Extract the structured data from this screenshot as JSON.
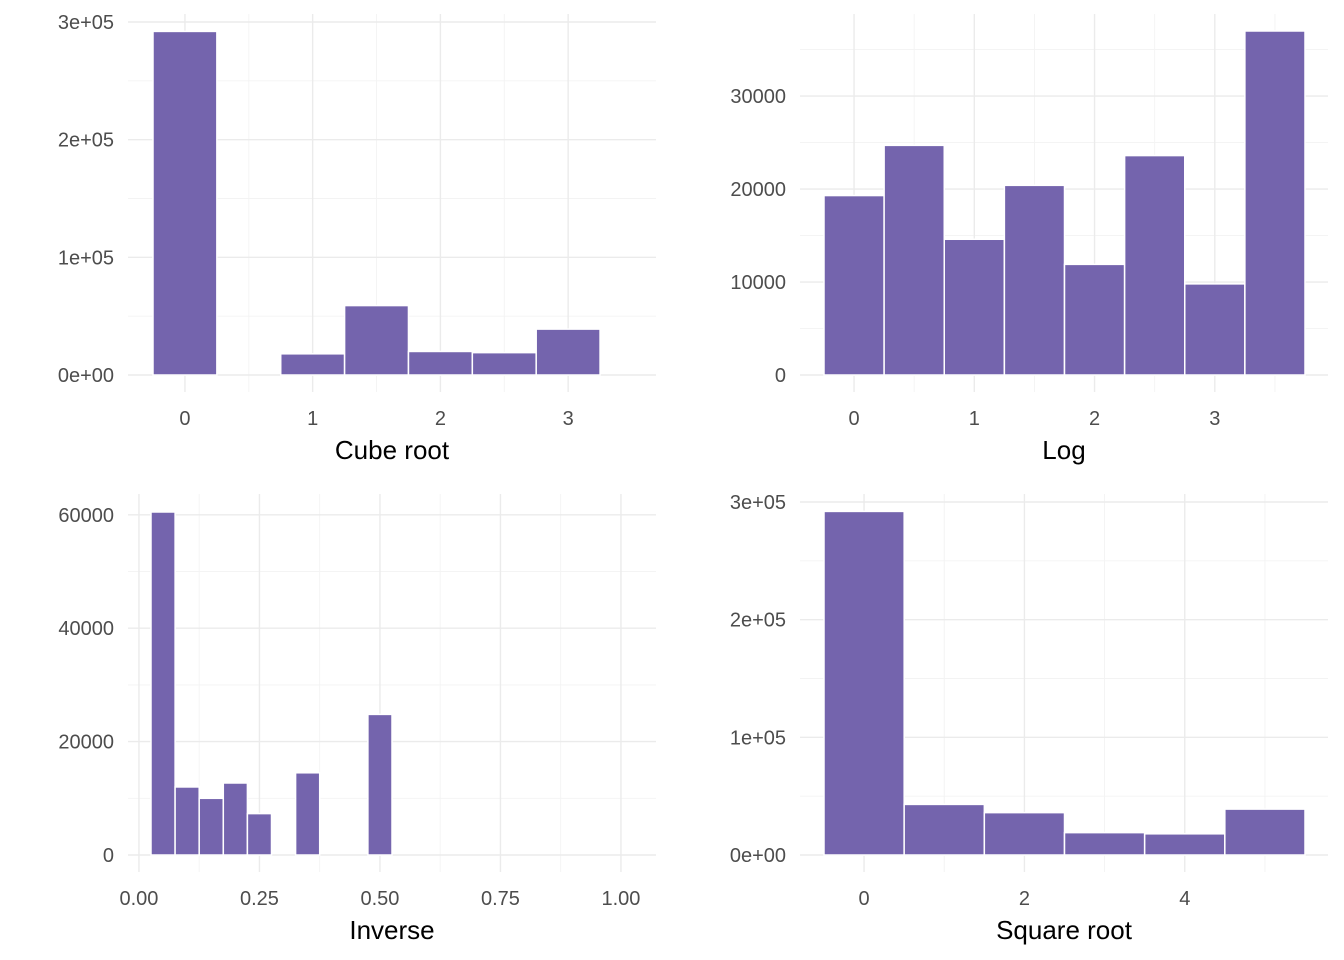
{
  "colors": {
    "bar_fill": "#7464ad",
    "bar_outline": "#ffffff",
    "grid_major": "#ebebeb",
    "grid_minor": "#f3f3f3"
  },
  "chart_data": [
    {
      "type": "bar",
      "title": "",
      "xlabel": "Cube root",
      "ylabel": "",
      "xlim": [
        -0.25,
        3.5
      ],
      "ylim": [
        0,
        300000
      ],
      "x_major_ticks": [
        0,
        1,
        2,
        3
      ],
      "x_tick_labels": [
        "0",
        "1",
        "2",
        "3"
      ],
      "x_minor_ticks": [
        0.5,
        1.5,
        2.5
      ],
      "y_major_ticks": [
        0,
        100000,
        200000,
        300000
      ],
      "y_tick_labels": [
        "0e+00",
        "1e+05",
        "2e+05",
        "3e+05"
      ],
      "y_minor_ticks": [
        50000,
        150000,
        250000
      ],
      "bins": [
        {
          "x0": -0.25,
          "x1": 0.25,
          "count": 292000
        },
        {
          "x0": 0.25,
          "x1": 0.75,
          "count": 0
        },
        {
          "x0": 0.75,
          "x1": 1.25,
          "count": 18000
        },
        {
          "x0": 1.25,
          "x1": 1.75,
          "count": 59000
        },
        {
          "x0": 1.75,
          "x1": 2.25,
          "count": 20000
        },
        {
          "x0": 2.25,
          "x1": 2.75,
          "count": 19000
        },
        {
          "x0": 2.75,
          "x1": 3.25,
          "count": 39000
        }
      ]
    },
    {
      "type": "bar",
      "title": "",
      "xlabel": "Log",
      "ylabel": "",
      "xlim": [
        -0.25,
        3.75
      ],
      "ylim": [
        0,
        37000
      ],
      "x_major_ticks": [
        0,
        1,
        2,
        3
      ],
      "x_tick_labels": [
        "0",
        "1",
        "2",
        "3"
      ],
      "x_minor_ticks": [
        0.5,
        1.5,
        2.5,
        3.5
      ],
      "y_major_ticks": [
        0,
        10000,
        20000,
        30000
      ],
      "y_tick_labels": [
        "0",
        "10000",
        "20000",
        "30000"
      ],
      "y_minor_ticks": [
        5000,
        15000,
        25000,
        35000
      ],
      "bins": [
        {
          "x0": -0.25,
          "x1": 0.25,
          "count": 19300
        },
        {
          "x0": 0.25,
          "x1": 0.75,
          "count": 24700
        },
        {
          "x0": 0.75,
          "x1": 1.25,
          "count": 14600
        },
        {
          "x0": 1.25,
          "x1": 1.75,
          "count": 20400
        },
        {
          "x0": 1.75,
          "x1": 2.25,
          "count": 11900
        },
        {
          "x0": 2.25,
          "x1": 2.75,
          "count": 23600
        },
        {
          "x0": 2.75,
          "x1": 3.25,
          "count": 9800
        },
        {
          "x0": 3.25,
          "x1": 3.75,
          "count": 37000
        }
      ]
    },
    {
      "type": "bar",
      "title": "",
      "xlabel": "Inverse",
      "ylabel": "",
      "xlim": [
        0.025,
        1.025
      ],
      "ylim": [
        0,
        60500
      ],
      "x_major_ticks": [
        0,
        0.25,
        0.5,
        0.75,
        1
      ],
      "x_tick_labels": [
        "0.00",
        "0.25",
        "0.50",
        "0.75",
        "1.00"
      ],
      "x_minor_ticks": [
        0.125,
        0.375,
        0.625,
        0.875
      ],
      "y_major_ticks": [
        0,
        20000,
        40000,
        60000
      ],
      "y_tick_labels": [
        "0",
        "20000",
        "40000",
        "60000"
      ],
      "y_minor_ticks": [
        10000,
        30000,
        50000
      ],
      "bins": [
        {
          "x0": 0.025,
          "x1": 0.075,
          "count": 60500
        },
        {
          "x0": 0.075,
          "x1": 0.125,
          "count": 12000
        },
        {
          "x0": 0.125,
          "x1": 0.175,
          "count": 10000
        },
        {
          "x0": 0.175,
          "x1": 0.225,
          "count": 12700
        },
        {
          "x0": 0.225,
          "x1": 0.275,
          "count": 7300
        },
        {
          "x0": 0.275,
          "x1": 0.325,
          "count": 0
        },
        {
          "x0": 0.325,
          "x1": 0.375,
          "count": 14500
        },
        {
          "x0": 0.375,
          "x1": 0.425,
          "count": 0
        },
        {
          "x0": 0.425,
          "x1": 0.475,
          "count": 0
        },
        {
          "x0": 0.475,
          "x1": 0.525,
          "count": 24800
        },
        {
          "x0": 0.525,
          "x1": 0.575,
          "count": 0
        },
        {
          "x0": 0.575,
          "x1": 0.625,
          "count": 0
        },
        {
          "x0": 0.625,
          "x1": 0.675,
          "count": 0
        },
        {
          "x0": 0.675,
          "x1": 0.725,
          "count": 0
        },
        {
          "x0": 0.725,
          "x1": 0.775,
          "count": 0
        },
        {
          "x0": 0.775,
          "x1": 0.825,
          "count": 0
        },
        {
          "x0": 0.825,
          "x1": 0.875,
          "count": 0
        },
        {
          "x0": 0.875,
          "x1": 0.925,
          "count": 0
        },
        {
          "x0": 0.925,
          "x1": 0.975,
          "count": 0
        },
        {
          "x0": 0.975,
          "x1": 1.025,
          "count": 0
        }
      ]
    },
    {
      "type": "bar",
      "title": "",
      "xlabel": "Square root",
      "ylabel": "",
      "xlim": [
        -0.5,
        5.5
      ],
      "ylim": [
        0,
        300000
      ],
      "x_major_ticks": [
        0,
        2,
        4
      ],
      "x_tick_labels": [
        "0",
        "2",
        "4"
      ],
      "x_minor_ticks": [
        1,
        3,
        5
      ],
      "y_major_ticks": [
        0,
        100000,
        200000,
        300000
      ],
      "y_tick_labels": [
        "0e+00",
        "1e+05",
        "2e+05",
        "3e+05"
      ],
      "y_minor_ticks": [
        50000,
        150000,
        250000
      ],
      "bins": [
        {
          "x0": -0.5,
          "x1": 0.5,
          "count": 292000
        },
        {
          "x0": 0.5,
          "x1": 1.5,
          "count": 43000
        },
        {
          "x0": 1.5,
          "x1": 2.5,
          "count": 36000
        },
        {
          "x0": 2.5,
          "x1": 3.5,
          "count": 19000
        },
        {
          "x0": 3.5,
          "x1": 4.5,
          "count": 18000
        },
        {
          "x0": 4.5,
          "x1": 5.5,
          "count": 39000
        }
      ]
    }
  ]
}
